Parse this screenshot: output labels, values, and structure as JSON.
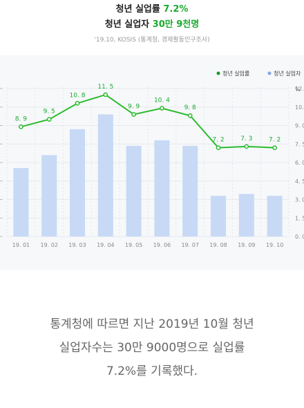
{
  "header": {
    "title1_prefix": "청년 실업률 ",
    "title1_value": "7.2%",
    "title2_prefix": "청년 실업자 ",
    "title2_value": "30만 9천명",
    "source": "'19.10, KOSIS (통계청, 경제활동인구조사)"
  },
  "caption": {
    "line1": "통계청에 따르면 지난 2019년 10월 청년",
    "line2": "실업자수는 30만 9000명으로 실업률",
    "line3": "7.2%를 기록했다."
  },
  "colors": {
    "accent": "#1aaa2e",
    "bar": "#c7d9f5",
    "line": "#2bbb2b"
  },
  "chart_data": {
    "type": "bar+line",
    "categories": [
      "19. 01",
      "19. 02",
      "19. 03",
      "19. 04",
      "19. 05",
      "19. 06",
      "19. 07",
      "19. 08",
      "19. 09",
      "19. 10"
    ],
    "series": [
      {
        "name": "청년 실업률",
        "type": "line",
        "axis": "right",
        "values": [
          8.9,
          9.5,
          10.8,
          11.5,
          9.9,
          10.4,
          9.8,
          7.2,
          7.3,
          7.2
        ],
        "labels": [
          "8. 9",
          "9. 5",
          "10. 8",
          "11. 5",
          "9. 9",
          "10. 4",
          "9. 8",
          "7. 2",
          "7. 3",
          "7. 2"
        ]
      },
      {
        "name": "청년 실업자",
        "type": "bar",
        "axis": "left",
        "values": [
          37,
          44,
          58,
          66,
          49,
          52,
          49,
          22,
          23,
          22
        ]
      }
    ],
    "right_axis": {
      "unit": "%",
      "ticks": [
        "0. 0",
        "1. 5",
        "3. 0",
        "4. 5",
        "6. 0",
        "7. 5",
        "9. 0",
        "10. 5",
        "12. 0"
      ],
      "ylim": [
        0,
        12
      ]
    },
    "left_axis": {
      "ylim": [
        0,
        80
      ]
    },
    "legend_position": "top-right",
    "grid": true
  }
}
